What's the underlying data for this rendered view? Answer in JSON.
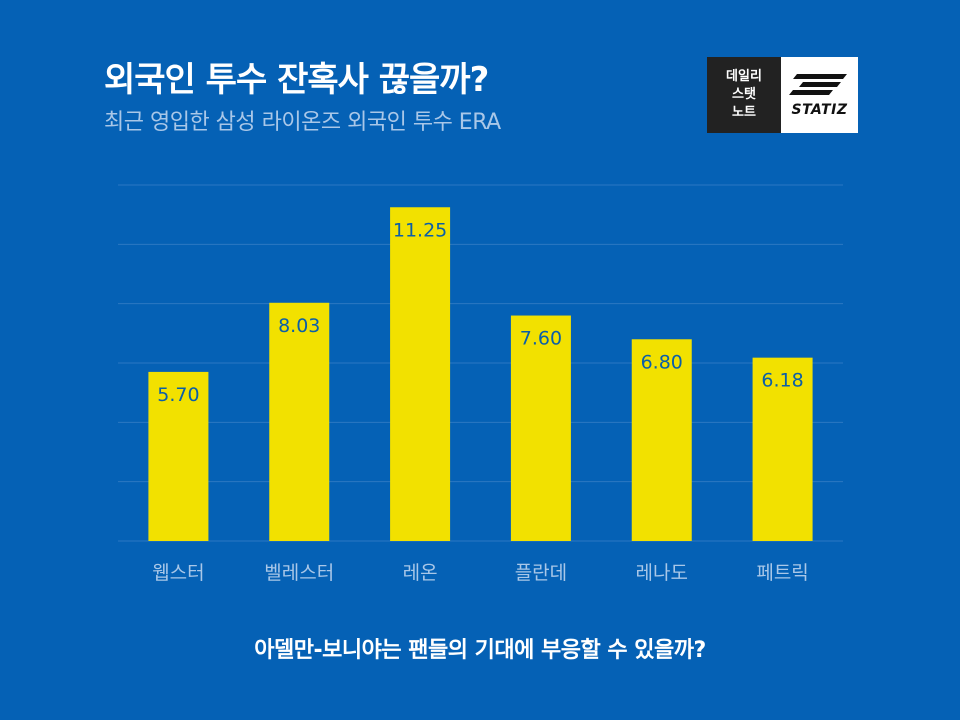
{
  "header": {
    "title": "외국인 투수 잔혹사 끊을까?",
    "subtitle": "최근 영입한 삼성 라이온즈 외국인 투수 ERA"
  },
  "logo": {
    "line1": "데일리",
    "line2": "스탯",
    "line3": "노트",
    "brand": "STATIZ"
  },
  "chart_data": {
    "type": "bar",
    "categories": [
      "웹스터",
      "벨레스터",
      "레온",
      "플란데",
      "레나도",
      "페트릭"
    ],
    "values": [
      5.7,
      8.03,
      11.25,
      7.6,
      6.8,
      6.18
    ],
    "value_labels": [
      "5.70",
      "8.03",
      "11.25",
      "7.60",
      "6.80",
      "6.18"
    ],
    "title": "",
    "xlabel": "",
    "ylabel": "",
    "ylim": [
      0,
      12
    ],
    "grid": true,
    "legend": "none"
  },
  "colors": {
    "background": "#0561b5",
    "bar": "#f2e100",
    "bar_label": "#0b5fa8",
    "category_label": "#a9c7e8",
    "gridline": "#2c78c2"
  },
  "footer": {
    "text": "아델만-보니야는 팬들의 기대에 부응할 수 있을까?"
  }
}
